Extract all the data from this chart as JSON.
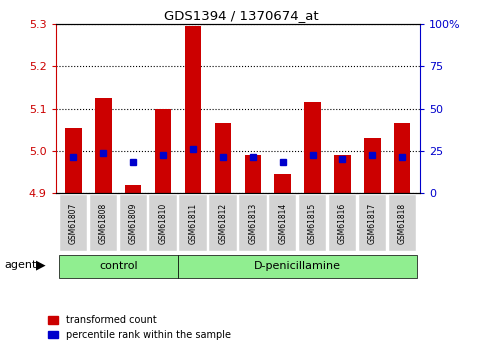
{
  "title": "GDS1394 / 1370674_at",
  "samples": [
    "GSM61807",
    "GSM61808",
    "GSM61809",
    "GSM61810",
    "GSM61811",
    "GSM61812",
    "GSM61813",
    "GSM61814",
    "GSM61815",
    "GSM61816",
    "GSM61817",
    "GSM61818"
  ],
  "red_values": [
    5.055,
    5.125,
    4.92,
    5.1,
    5.295,
    5.065,
    4.99,
    4.945,
    5.115,
    4.99,
    5.03,
    5.065
  ],
  "blue_values": [
    4.985,
    4.995,
    4.975,
    4.99,
    5.005,
    4.985,
    4.985,
    4.975,
    4.99,
    4.98,
    4.99,
    4.985
  ],
  "ymin": 4.9,
  "ymax": 5.3,
  "yticks": [
    4.9,
    5.0,
    5.1,
    5.2,
    5.3
  ],
  "right_yticks": [
    0,
    25,
    50,
    75,
    100
  ],
  "right_ytick_labels": [
    "0",
    "25",
    "50",
    "75",
    "100%"
  ],
  "bar_width": 0.55,
  "red_color": "#cc0000",
  "blue_color": "#0000cc",
  "n_control": 4,
  "n_dpen": 8,
  "control_label": "control",
  "dpen_label": "D-penicillamine",
  "agent_label": "agent",
  "legend_red": "transformed count",
  "legend_blue": "percentile rank within the sample",
  "group_bg_color": "#90ee90",
  "sample_bg_color": "#d3d3d3"
}
